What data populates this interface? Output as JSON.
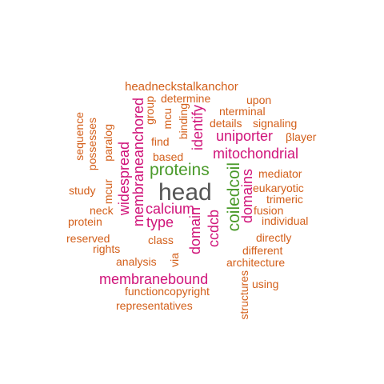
{
  "colors": {
    "dark": "#555555",
    "green": "#4a9a2a",
    "magenta": "#d0147a",
    "orange": "#d35f1a"
  },
  "words": [
    {
      "text": "head",
      "color": "dark"
    },
    {
      "text": "proteins",
      "color": "green"
    },
    {
      "text": "coiledcoil",
      "color": "green"
    },
    {
      "text": "mitochondrial",
      "color": "magenta"
    },
    {
      "text": "uniporter",
      "color": "magenta"
    },
    {
      "text": "calcium",
      "color": "magenta"
    },
    {
      "text": "membranebound",
      "color": "magenta"
    },
    {
      "text": "membraneanchored",
      "color": "magenta"
    },
    {
      "text": "widespread",
      "color": "magenta"
    },
    {
      "text": "identify",
      "color": "magenta"
    },
    {
      "text": "domains",
      "color": "magenta"
    },
    {
      "text": "domain",
      "color": "magenta"
    },
    {
      "text": "ccdcb",
      "color": "magenta"
    },
    {
      "text": "type",
      "color": "magenta"
    },
    {
      "text": "headneckstalkanchor",
      "color": "orange"
    },
    {
      "text": "determine",
      "color": "orange"
    },
    {
      "text": "upon",
      "color": "orange"
    },
    {
      "text": "nterminal",
      "color": "orange"
    },
    {
      "text": "details",
      "color": "orange"
    },
    {
      "text": "signaling",
      "color": "orange"
    },
    {
      "text": "βlayer",
      "color": "orange"
    },
    {
      "text": "find",
      "color": "orange"
    },
    {
      "text": "based",
      "color": "orange"
    },
    {
      "text": "mediator",
      "color": "orange"
    },
    {
      "text": "eukaryotic",
      "color": "orange"
    },
    {
      "text": "trimeric",
      "color": "orange"
    },
    {
      "text": "fusion",
      "color": "orange"
    },
    {
      "text": "individual",
      "color": "orange"
    },
    {
      "text": "directly",
      "color": "orange"
    },
    {
      "text": "different",
      "color": "orange"
    },
    {
      "text": "architecture",
      "color": "orange"
    },
    {
      "text": "using",
      "color": "orange"
    },
    {
      "text": "functioncopyright",
      "color": "orange"
    },
    {
      "text": "representatives",
      "color": "orange"
    },
    {
      "text": "analysis",
      "color": "orange"
    },
    {
      "text": "class",
      "color": "orange"
    },
    {
      "text": "rights",
      "color": "orange"
    },
    {
      "text": "reserved",
      "color": "orange"
    },
    {
      "text": "protein",
      "color": "orange"
    },
    {
      "text": "neck",
      "color": "orange"
    },
    {
      "text": "study",
      "color": "orange"
    },
    {
      "text": "sequence",
      "color": "orange"
    },
    {
      "text": "possesses",
      "color": "orange"
    },
    {
      "text": "paralog",
      "color": "orange"
    },
    {
      "text": "mcur",
      "color": "orange"
    },
    {
      "text": "group",
      "color": "orange"
    },
    {
      "text": "mcu",
      "color": "orange"
    },
    {
      "text": "binding",
      "color": "orange"
    },
    {
      "text": "via",
      "color": "orange"
    },
    {
      "text": "structures",
      "color": "orange"
    }
  ]
}
